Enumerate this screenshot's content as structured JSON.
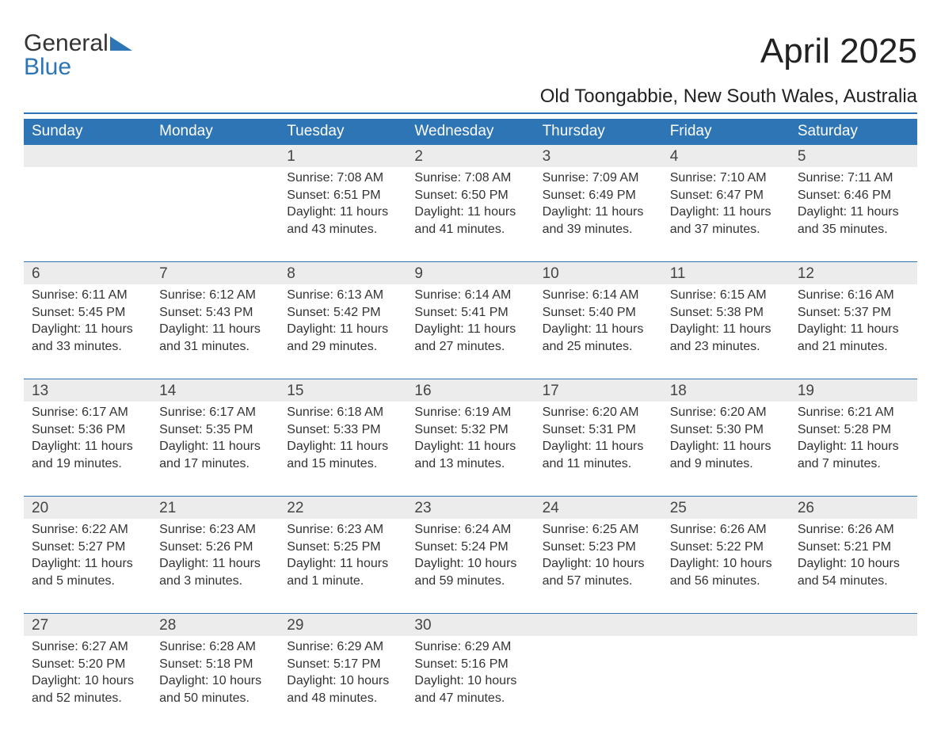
{
  "logo": {
    "line1": "General",
    "line2": "Blue"
  },
  "title": "April 2025",
  "subtitle": "Old Toongabbie, New South Wales, Australia",
  "colors": {
    "header_bg": "#2e75b6",
    "header_text": "#ffffff",
    "daynum_bg": "#ececec",
    "rule": "#2e75b6",
    "body_text": "#333333",
    "page_bg": "#ffffff"
  },
  "day_headers": [
    "Sunday",
    "Monday",
    "Tuesday",
    "Wednesday",
    "Thursday",
    "Friday",
    "Saturday"
  ],
  "weeks": [
    [
      {
        "n": "",
        "sr": "",
        "ss": "",
        "dl": ""
      },
      {
        "n": "",
        "sr": "",
        "ss": "",
        "dl": ""
      },
      {
        "n": "1",
        "sr": "7:08 AM",
        "ss": "6:51 PM",
        "dl": "11 hours and 43 minutes."
      },
      {
        "n": "2",
        "sr": "7:08 AM",
        "ss": "6:50 PM",
        "dl": "11 hours and 41 minutes."
      },
      {
        "n": "3",
        "sr": "7:09 AM",
        "ss": "6:49 PM",
        "dl": "11 hours and 39 minutes."
      },
      {
        "n": "4",
        "sr": "7:10 AM",
        "ss": "6:47 PM",
        "dl": "11 hours and 37 minutes."
      },
      {
        "n": "5",
        "sr": "7:11 AM",
        "ss": "6:46 PM",
        "dl": "11 hours and 35 minutes."
      }
    ],
    [
      {
        "n": "6",
        "sr": "6:11 AM",
        "ss": "5:45 PM",
        "dl": "11 hours and 33 minutes."
      },
      {
        "n": "7",
        "sr": "6:12 AM",
        "ss": "5:43 PM",
        "dl": "11 hours and 31 minutes."
      },
      {
        "n": "8",
        "sr": "6:13 AM",
        "ss": "5:42 PM",
        "dl": "11 hours and 29 minutes."
      },
      {
        "n": "9",
        "sr": "6:14 AM",
        "ss": "5:41 PM",
        "dl": "11 hours and 27 minutes."
      },
      {
        "n": "10",
        "sr": "6:14 AM",
        "ss": "5:40 PM",
        "dl": "11 hours and 25 minutes."
      },
      {
        "n": "11",
        "sr": "6:15 AM",
        "ss": "5:38 PM",
        "dl": "11 hours and 23 minutes."
      },
      {
        "n": "12",
        "sr": "6:16 AM",
        "ss": "5:37 PM",
        "dl": "11 hours and 21 minutes."
      }
    ],
    [
      {
        "n": "13",
        "sr": "6:17 AM",
        "ss": "5:36 PM",
        "dl": "11 hours and 19 minutes."
      },
      {
        "n": "14",
        "sr": "6:17 AM",
        "ss": "5:35 PM",
        "dl": "11 hours and 17 minutes."
      },
      {
        "n": "15",
        "sr": "6:18 AM",
        "ss": "5:33 PM",
        "dl": "11 hours and 15 minutes."
      },
      {
        "n": "16",
        "sr": "6:19 AM",
        "ss": "5:32 PM",
        "dl": "11 hours and 13 minutes."
      },
      {
        "n": "17",
        "sr": "6:20 AM",
        "ss": "5:31 PM",
        "dl": "11 hours and 11 minutes."
      },
      {
        "n": "18",
        "sr": "6:20 AM",
        "ss": "5:30 PM",
        "dl": "11 hours and 9 minutes."
      },
      {
        "n": "19",
        "sr": "6:21 AM",
        "ss": "5:28 PM",
        "dl": "11 hours and 7 minutes."
      }
    ],
    [
      {
        "n": "20",
        "sr": "6:22 AM",
        "ss": "5:27 PM",
        "dl": "11 hours and 5 minutes."
      },
      {
        "n": "21",
        "sr": "6:23 AM",
        "ss": "5:26 PM",
        "dl": "11 hours and 3 minutes."
      },
      {
        "n": "22",
        "sr": "6:23 AM",
        "ss": "5:25 PM",
        "dl": "11 hours and 1 minute."
      },
      {
        "n": "23",
        "sr": "6:24 AM",
        "ss": "5:24 PM",
        "dl": "10 hours and 59 minutes."
      },
      {
        "n": "24",
        "sr": "6:25 AM",
        "ss": "5:23 PM",
        "dl": "10 hours and 57 minutes."
      },
      {
        "n": "25",
        "sr": "6:26 AM",
        "ss": "5:22 PM",
        "dl": "10 hours and 56 minutes."
      },
      {
        "n": "26",
        "sr": "6:26 AM",
        "ss": "5:21 PM",
        "dl": "10 hours and 54 minutes."
      }
    ],
    [
      {
        "n": "27",
        "sr": "6:27 AM",
        "ss": "5:20 PM",
        "dl": "10 hours and 52 minutes."
      },
      {
        "n": "28",
        "sr": "6:28 AM",
        "ss": "5:18 PM",
        "dl": "10 hours and 50 minutes."
      },
      {
        "n": "29",
        "sr": "6:29 AM",
        "ss": "5:17 PM",
        "dl": "10 hours and 48 minutes."
      },
      {
        "n": "30",
        "sr": "6:29 AM",
        "ss": "5:16 PM",
        "dl": "10 hours and 47 minutes."
      },
      {
        "n": "",
        "sr": "",
        "ss": "",
        "dl": ""
      },
      {
        "n": "",
        "sr": "",
        "ss": "",
        "dl": ""
      },
      {
        "n": "",
        "sr": "",
        "ss": "",
        "dl": ""
      }
    ]
  ],
  "labels": {
    "sunrise": "Sunrise: ",
    "sunset": "Sunset: ",
    "daylight": "Daylight: "
  }
}
